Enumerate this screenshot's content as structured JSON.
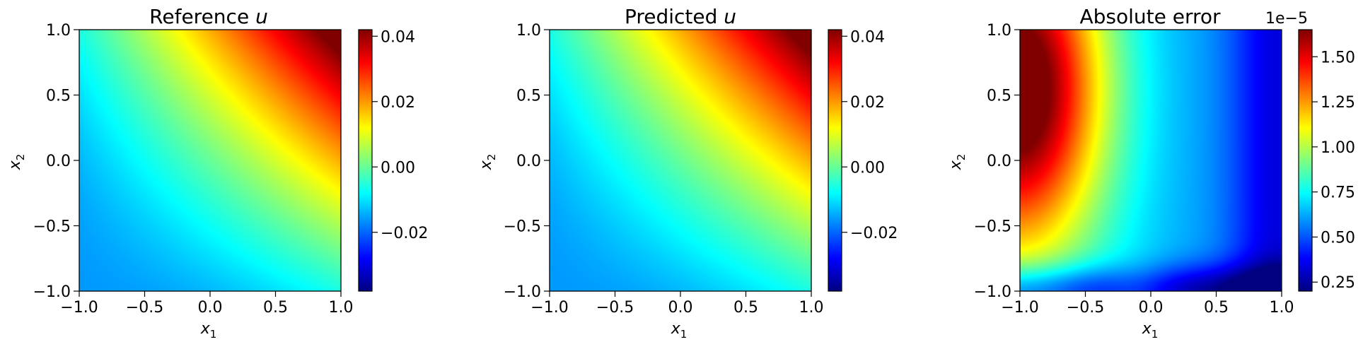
{
  "chart_data": [
    {
      "type": "heatmap",
      "title": "Reference",
      "title_var": "u",
      "xlabel": "x",
      "xlabel_sub": "1",
      "ylabel": "x",
      "ylabel_sub": "2",
      "xlim": [
        -1.0,
        1.0
      ],
      "ylim": [
        -1.0,
        1.0
      ],
      "xticks": [
        "−1.0",
        "−0.5",
        "0.0",
        "0.5",
        "1.0"
      ],
      "yticks": [
        "−1.0",
        "−0.5",
        "0.0",
        "0.5",
        "1.0"
      ],
      "colormap": "jet",
      "field": "0.016*(x1+x2) + 0.006*x1*x2 + 0.0025*(x1+x2)^2",
      "colorbar": {
        "range": [
          -0.038,
          0.042
        ],
        "ticks": [
          -0.02,
          0.0,
          0.02,
          0.04
        ],
        "tick_labels": [
          "−0.02",
          "0.00",
          "0.02",
          "0.04"
        ],
        "offset_label": ""
      }
    },
    {
      "type": "heatmap",
      "title": "Predicted",
      "title_var": "u",
      "xlabel": "x",
      "xlabel_sub": "1",
      "ylabel": "x",
      "ylabel_sub": "2",
      "xlim": [
        -1.0,
        1.0
      ],
      "ylim": [
        -1.0,
        1.0
      ],
      "xticks": [
        "−1.0",
        "−0.5",
        "0.0",
        "0.5",
        "1.0"
      ],
      "yticks": [
        "−1.0",
        "−0.5",
        "0.0",
        "0.5",
        "1.0"
      ],
      "colormap": "jet",
      "field": "0.016*(x1+x2) + 0.006*x1*x2 + 0.0025*(x1+x2)^2",
      "colorbar": {
        "range": [
          -0.038,
          0.042
        ],
        "ticks": [
          -0.02,
          0.0,
          0.02,
          0.04
        ],
        "tick_labels": [
          "−0.02",
          "0.00",
          "0.02",
          "0.04"
        ],
        "offset_label": ""
      }
    },
    {
      "type": "heatmap",
      "title": "Absolute error",
      "title_var": "",
      "xlabel": "x",
      "xlabel_sub": "1",
      "ylabel": "x",
      "ylabel_sub": "2",
      "xlim": [
        -1.0,
        1.0
      ],
      "ylim": [
        -1.0,
        1.0
      ],
      "xticks": [
        "−1.0",
        "−0.5",
        "0.0",
        "0.5",
        "1.0"
      ],
      "yticks": [
        "−1.0",
        "−0.5",
        "0.0",
        "0.5",
        "1.0"
      ],
      "colormap": "jet",
      "field": "absolute difference of reference and predicted u; max ~1.6e-5 at left edge (x1=-1, x2~0.5), min ~0.2e-5 at bottom (x2=-1) and right (x1~0.9)",
      "colorbar": {
        "range": [
          0.2,
          1.65
        ],
        "ticks": [
          0.25,
          0.5,
          0.75,
          1.0,
          1.25,
          1.5
        ],
        "tick_labels": [
          "0.25",
          "0.50",
          "0.75",
          "1.00",
          "1.25",
          "1.50"
        ],
        "offset_label": "1e−5"
      }
    }
  ]
}
